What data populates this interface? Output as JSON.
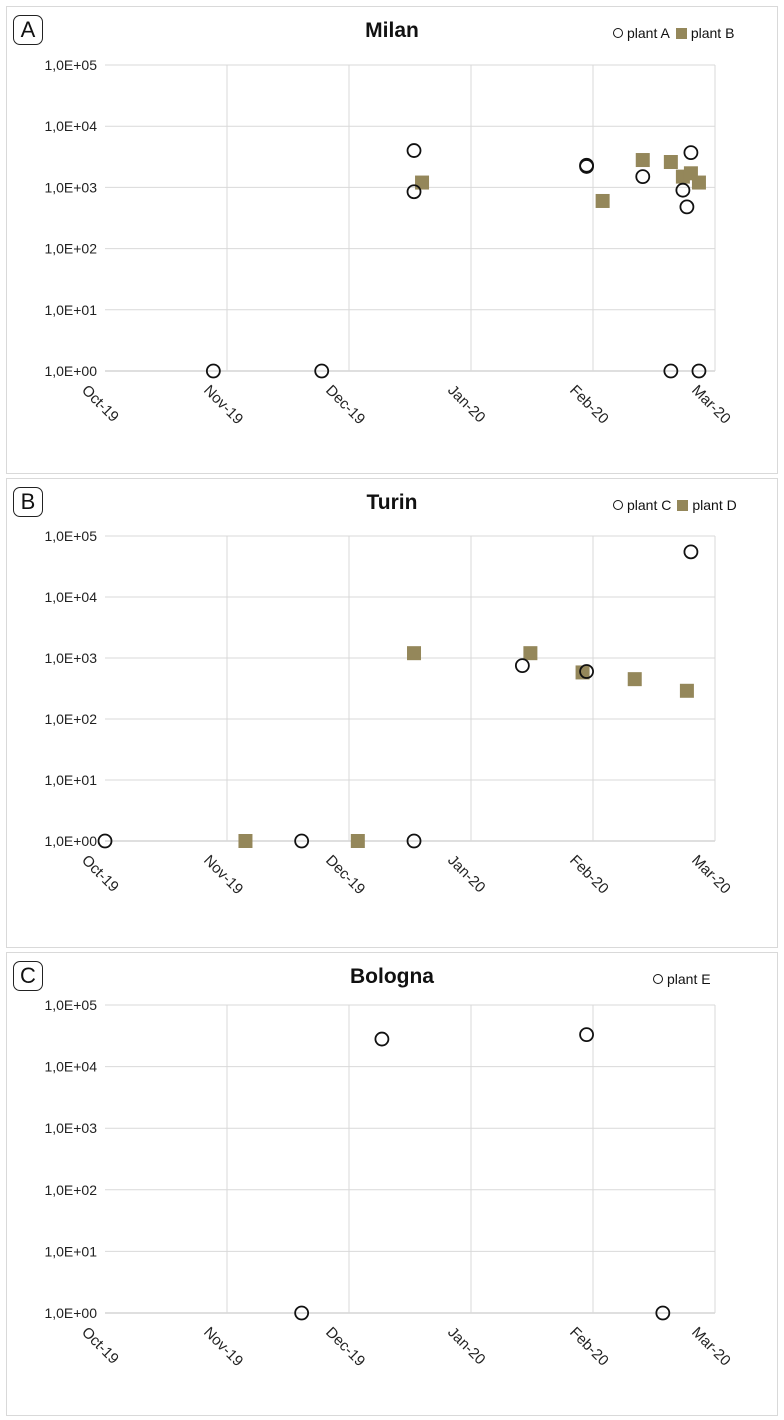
{
  "colors": {
    "plant_circle_stroke": "#111111",
    "plant_square_fill": "#94875a",
    "grid": "#d9d9d9"
  },
  "chart_data": [
    {
      "type": "scatter",
      "panel_label": "A",
      "title": "Milan",
      "y_scale": "log",
      "ylim": [
        1,
        100000
      ],
      "y_ticks": [
        "1,0E+00",
        "1,0E+01",
        "1,0E+02",
        "1,0E+03",
        "1,0E+04",
        "1,0E+05"
      ],
      "x_ticks": [
        "Oct-19",
        "Nov-19",
        "Dec-19",
        "Jan-20",
        "Feb-20",
        "Mar-20"
      ],
      "xlim": [
        "2019-10-01",
        "2020-03-01"
      ],
      "grid": true,
      "legend_position": "top-right",
      "series": [
        {
          "name": "plant A",
          "marker": "circle",
          "points": [
            {
              "x": "2019-10-28",
              "y": 1
            },
            {
              "x": "2019-11-24",
              "y": 1
            },
            {
              "x": "2019-12-17",
              "y": 4000
            },
            {
              "x": "2019-12-17",
              "y": 850
            },
            {
              "x": "2020-01-29",
              "y": 2300
            },
            {
              "x": "2020-01-29",
              "y": 2200
            },
            {
              "x": "2020-02-12",
              "y": 1500
            },
            {
              "x": "2020-02-19",
              "y": 1
            },
            {
              "x": "2020-02-24",
              "y": 3700
            },
            {
              "x": "2020-02-22",
              "y": 900
            },
            {
              "x": "2020-02-23",
              "y": 480
            },
            {
              "x": "2020-02-26",
              "y": 1
            }
          ]
        },
        {
          "name": "plant B",
          "marker": "square",
          "points": [
            {
              "x": "2019-12-19",
              "y": 1200
            },
            {
              "x": "2020-02-02",
              "y": 600
            },
            {
              "x": "2020-02-12",
              "y": 2800
            },
            {
              "x": "2020-02-19",
              "y": 2600
            },
            {
              "x": "2020-02-22",
              "y": 1500
            },
            {
              "x": "2020-02-24",
              "y": 1700
            },
            {
              "x": "2020-02-26",
              "y": 1200
            }
          ]
        }
      ]
    },
    {
      "type": "scatter",
      "panel_label": "B",
      "title": "Turin",
      "y_scale": "log",
      "ylim": [
        1,
        100000
      ],
      "y_ticks": [
        "1,0E+00",
        "1,0E+01",
        "1,0E+02",
        "1,0E+03",
        "1,0E+04",
        "1,0E+05"
      ],
      "x_ticks": [
        "Oct-19",
        "Nov-19",
        "Dec-19",
        "Jan-20",
        "Feb-20",
        "Mar-20"
      ],
      "xlim": [
        "2019-10-01",
        "2020-03-01"
      ],
      "grid": true,
      "legend_position": "top-right",
      "series": [
        {
          "name": "plant C",
          "marker": "circle",
          "points": [
            {
              "x": "2019-10-01",
              "y": 1
            },
            {
              "x": "2019-11-19",
              "y": 1
            },
            {
              "x": "2019-12-17",
              "y": 1
            },
            {
              "x": "2020-01-13",
              "y": 750
            },
            {
              "x": "2020-01-29",
              "y": 600
            },
            {
              "x": "2020-02-24",
              "y": 55000
            }
          ]
        },
        {
          "name": "plant D",
          "marker": "square",
          "points": [
            {
              "x": "2019-11-05",
              "y": 1
            },
            {
              "x": "2019-12-03",
              "y": 1
            },
            {
              "x": "2019-12-17",
              "y": 1200
            },
            {
              "x": "2020-01-15",
              "y": 1200
            },
            {
              "x": "2020-01-28",
              "y": 580
            },
            {
              "x": "2020-02-10",
              "y": 450
            },
            {
              "x": "2020-02-23",
              "y": 290
            }
          ]
        }
      ]
    },
    {
      "type": "scatter",
      "panel_label": "C",
      "title": "Bologna",
      "y_scale": "log",
      "ylim": [
        1,
        100000
      ],
      "y_ticks": [
        "1,0E+00",
        "1,0E+01",
        "1,0E+02",
        "1,0E+03",
        "1,0E+04",
        "1,0E+05"
      ],
      "x_ticks": [
        "Oct-19",
        "Nov-19",
        "Dec-19",
        "Jan-20",
        "Feb-20",
        "Mar-20"
      ],
      "xlim": [
        "2019-10-01",
        "2020-03-01"
      ],
      "grid": true,
      "legend_position": "top-right",
      "series": [
        {
          "name": "plant E",
          "marker": "circle",
          "points": [
            {
              "x": "2019-11-19",
              "y": 1
            },
            {
              "x": "2019-12-09",
              "y": 28000
            },
            {
              "x": "2020-01-29",
              "y": 33000
            },
            {
              "x": "2020-02-17",
              "y": 1
            }
          ]
        }
      ]
    }
  ]
}
